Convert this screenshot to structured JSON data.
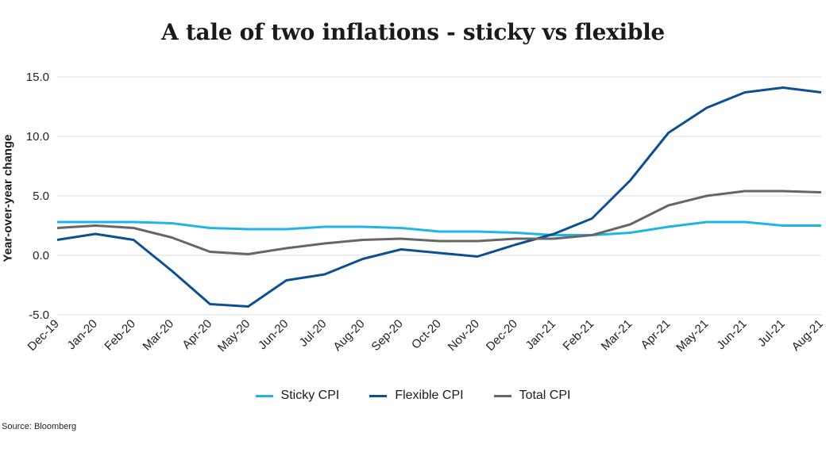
{
  "chart_data": {
    "type": "line",
    "title": "A tale of two inflations - sticky vs flexible",
    "ylabel": "Year-over-year change",
    "xlabel": "",
    "ylim": [
      -5.0,
      15.0
    ],
    "yticks": [
      "15.0",
      "10.0",
      "5.0",
      "0.0",
      "-5.0"
    ],
    "ytick_values": [
      15,
      10,
      5,
      0,
      -5
    ],
    "grid": "horizontal",
    "legend_position": "bottom",
    "categories": [
      "Dec-19",
      "Jan-20",
      "Feb-20",
      "Mar-20",
      "Apr-20",
      "May-20",
      "Jun-20",
      "Jul-20",
      "Aug-20",
      "Sep-20",
      "Oct-20",
      "Nov-20",
      "Dec-20",
      "Jan-21",
      "Feb-21",
      "Mar-21",
      "Apr-21",
      "May-21",
      "Jun-21",
      "Jul-21",
      "Aug-21"
    ],
    "series": [
      {
        "name": "Sticky CPI",
        "color": "#1fb5e6",
        "values": [
          2.8,
          2.8,
          2.8,
          2.7,
          2.3,
          2.2,
          2.2,
          2.4,
          2.4,
          2.3,
          2.0,
          2.0,
          1.9,
          1.7,
          1.7,
          1.9,
          2.4,
          2.8,
          2.8,
          2.5,
          2.5
        ]
      },
      {
        "name": "Flexible CPI",
        "color": "#0d4f93",
        "values": [
          1.3,
          1.8,
          1.3,
          -1.3,
          -4.1,
          -4.3,
          -2.1,
          -1.6,
          -0.3,
          0.5,
          0.2,
          -0.1,
          0.9,
          1.8,
          3.1,
          6.3,
          10.3,
          12.4,
          13.7,
          14.1,
          13.7
        ]
      },
      {
        "name": "Total CPI",
        "color": "#666666",
        "values": [
          2.3,
          2.5,
          2.3,
          1.5,
          0.3,
          0.1,
          0.6,
          1.0,
          1.3,
          1.4,
          1.2,
          1.2,
          1.4,
          1.4,
          1.7,
          2.6,
          4.2,
          5.0,
          5.4,
          5.4,
          5.3
        ]
      }
    ]
  },
  "source": "Source: Bloomberg"
}
